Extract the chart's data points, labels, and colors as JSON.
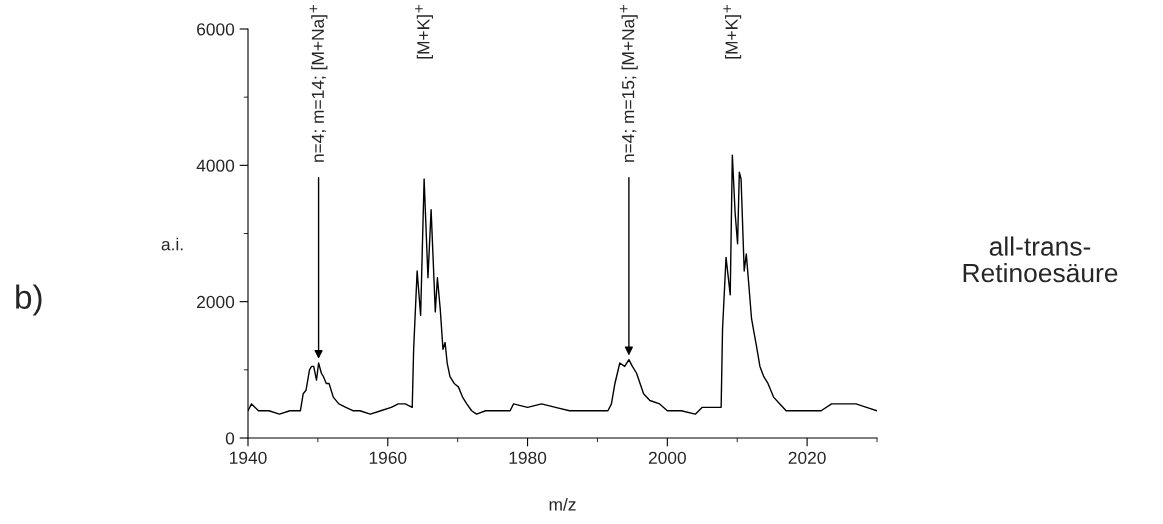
{
  "chart_data": {
    "type": "line",
    "xlabel": "m/z",
    "ylabel": "a.i.",
    "xlim": [
      1940,
      2030
    ],
    "xticks": [
      1940,
      1960,
      1980,
      2000,
      2020
    ],
    "ylim": [
      0,
      6000
    ],
    "yticks": [
      0,
      2000,
      4000,
      6000
    ],
    "grid": false,
    "legend": false,
    "marker": "none",
    "line_style": "solid",
    "series": [
      {
        "color": "#000000",
        "x": [
          1940,
          1940.5,
          1941.5,
          1943,
          1944.5,
          1946,
          1947.5,
          1947.9,
          1948.3,
          1948.8,
          1949.1,
          1949.4,
          1949.8,
          1950.1,
          1950.5,
          1950.8,
          1951.2,
          1951.6,
          1952.2,
          1953,
          1954,
          1955,
          1956,
          1957.5,
          1959,
          1960.5,
          1961.5,
          1962.5,
          1963.5,
          1963.7,
          1964.2,
          1964.7,
          1965.2,
          1965.75,
          1966.2,
          1966.8,
          1967.1,
          1967.5,
          1967.9,
          1968.2,
          1968.5,
          1968.9,
          1969.5,
          1970.1,
          1970.7,
          1971.3,
          1972,
          1972.7,
          1974,
          1976,
          1977.5,
          1978,
          1980,
          1982,
          1984,
          1986,
          1988,
          1990,
          1991.5,
          1992,
          1992.5,
          1993.2,
          1993.9,
          1994.5,
          1995,
          1995.6,
          1996.1,
          1996.6,
          1997.5,
          1998.9,
          2000,
          2002,
          2004,
          2005,
          2006.5,
          2007.7,
          2007.9,
          2008.4,
          2009.0,
          2009.3,
          2009.7,
          2010.05,
          2010.3,
          2010.55,
          2011.0,
          2011.3,
          2012.05,
          2012.4,
          2012.75,
          2013.25,
          2013.8,
          2014.4,
          2015.2,
          2016.1,
          2017,
          2018.1,
          2020,
          2022,
          2023.5,
          2025.2,
          2027,
          2028.5,
          2030
        ],
        "values": [
          400,
          500,
          400,
          400,
          350,
          400,
          400,
          650,
          700,
          1000,
          1050,
          1050,
          850,
          1100,
          950,
          900,
          800,
          800,
          600,
          500,
          450,
          400,
          400,
          350,
          400,
          450,
          500,
          500,
          450,
          1300,
          2450,
          1800,
          3800,
          2350,
          3350,
          1850,
          2350,
          1900,
          1300,
          1400,
          1100,
          900,
          800,
          750,
          600,
          500,
          400,
          350,
          400,
          400,
          400,
          500,
          450,
          500,
          450,
          400,
          400,
          400,
          400,
          500,
          800,
          1100,
          1050,
          1150,
          1050,
          950,
          800,
          650,
          550,
          500,
          400,
          400,
          350,
          450,
          450,
          450,
          1600,
          2650,
          2100,
          4150,
          3300,
          2850,
          3900,
          3800,
          2450,
          2700,
          1750,
          1550,
          1350,
          1050,
          900,
          800,
          600,
          500,
          400,
          400,
          400,
          400,
          500,
          500,
          500,
          450,
          400
        ]
      }
    ],
    "annotations": [
      {
        "text": "n=4; m=14; [M+Na]$^{+}$",
        "x": 1950.1,
        "y": 1100
      },
      {
        "text": "n=4; m=15; [M+Na]$^{+}$",
        "x": 1994.5,
        "y": 1150
      },
      "[M+K]$^{+}$",
      "[M+K]$^{+}$",
      "b)",
      "all-trans-\nRetinoesäure"
    ]
  }
}
